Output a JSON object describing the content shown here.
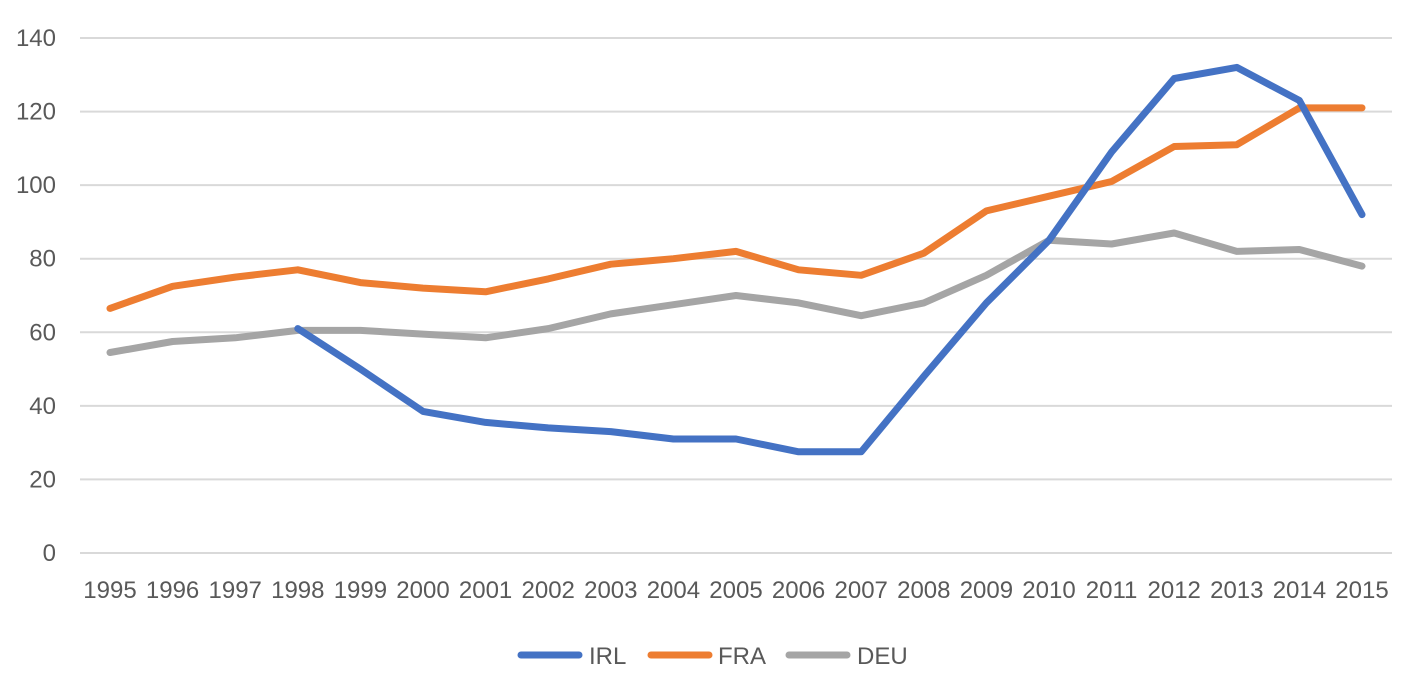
{
  "chart_data": {
    "type": "line",
    "title": "",
    "xlabel": "",
    "ylabel": "",
    "x": [
      "1995",
      "1996",
      "1997",
      "1998",
      "1999",
      "2000",
      "2001",
      "2002",
      "2003",
      "2004",
      "2005",
      "2006",
      "2007",
      "2008",
      "2009",
      "2010",
      "2011",
      "2012",
      "2013",
      "2014",
      "2015"
    ],
    "ylim": [
      0,
      140
    ],
    "yticks": [
      0,
      20,
      40,
      60,
      80,
      100,
      120,
      140
    ],
    "grid": true,
    "legend_position": "bottom",
    "series": [
      {
        "name": "IRL",
        "color": "#4472c4",
        "values": [
          null,
          null,
          null,
          61,
          50,
          38.5,
          35.5,
          34,
          33,
          31,
          31,
          27.5,
          27.5,
          48,
          68,
          85,
          109,
          129,
          132,
          123,
          92
        ]
      },
      {
        "name": "FRA",
        "color": "#ed7d31",
        "values": [
          66.5,
          72.5,
          75,
          77,
          73.5,
          72,
          71,
          74.5,
          78.5,
          80,
          82,
          77,
          75.5,
          81.5,
          93,
          97,
          101,
          110.5,
          111,
          121,
          121
        ]
      },
      {
        "name": "DEU",
        "color": "#a5a5a5",
        "values": [
          54.5,
          57.5,
          58.5,
          60.5,
          60.5,
          59.5,
          58.5,
          61,
          65,
          67.5,
          70,
          68,
          64.5,
          68,
          75.5,
          85,
          84,
          87,
          82,
          82.5,
          78
        ]
      }
    ]
  }
}
